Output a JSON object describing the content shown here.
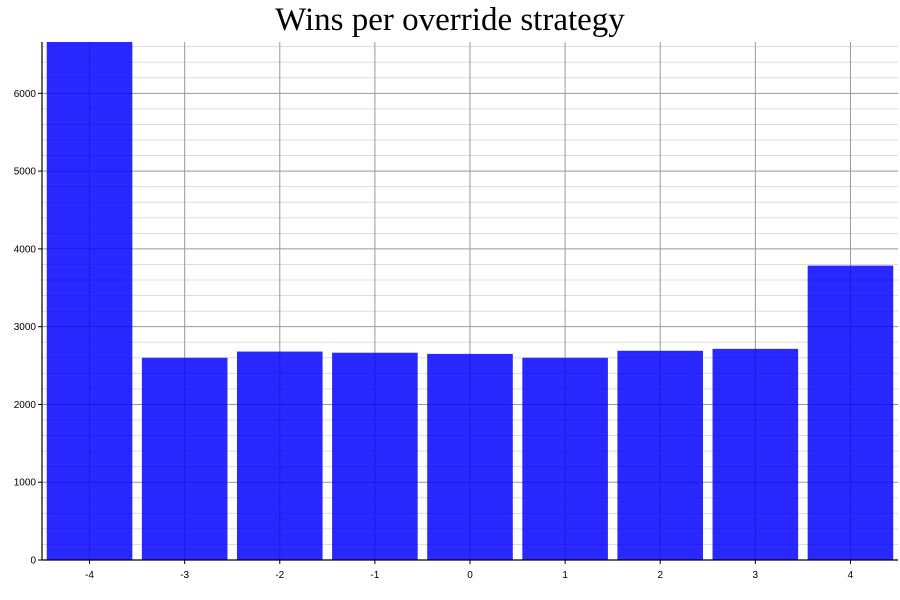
{
  "chart_data": {
    "type": "bar",
    "title": "Wins per override strategy",
    "xlabel": "",
    "ylabel": "",
    "categories": [
      "-4",
      "-3",
      "-2",
      "-1",
      "0",
      "1",
      "2",
      "3",
      "4"
    ],
    "values": [
      6660,
      2600,
      2680,
      2665,
      2650,
      2600,
      2690,
      2715,
      3785
    ],
    "ylim": [
      0,
      6660
    ],
    "yticks": [
      0,
      1000,
      2000,
      3000,
      4000,
      5000,
      6000
    ],
    "grid": true,
    "bar_color": "#0000ff",
    "legend": "none"
  }
}
